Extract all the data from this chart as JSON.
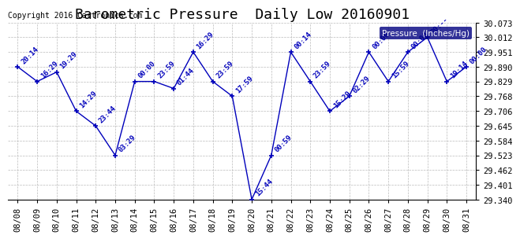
{
  "title": "Barometric Pressure  Daily Low 20160901",
  "copyright": "Copyright 2016 Cartronics.com",
  "legend_label": "Pressure  (Inches/Hg)",
  "dates": [
    "08/08",
    "08/09",
    "08/10",
    "08/11",
    "08/12",
    "08/13",
    "08/14",
    "08/15",
    "08/16",
    "08/17",
    "08/18",
    "08/19",
    "08/20",
    "08/21",
    "08/22",
    "08/23",
    "08/24",
    "08/25",
    "08/26",
    "08/27",
    "08/28",
    "08/29",
    "08/30",
    "08/31"
  ],
  "values": [
    29.89,
    29.829,
    29.868,
    29.706,
    29.645,
    29.523,
    29.829,
    29.829,
    29.8,
    29.951,
    29.829,
    29.768,
    29.34,
    29.523,
    29.951,
    29.829,
    29.706,
    29.768,
    29.951,
    29.829,
    29.951,
    30.012,
    29.829,
    29.89
  ],
  "times": [
    "20:14",
    "16:29",
    "19:29",
    "14:29",
    "23:44",
    "03:29",
    "00:00",
    "23:59",
    "01:44",
    "16:29",
    "23:59",
    "17:59",
    "15:44",
    "00:59",
    "00:14",
    "23:59",
    "15:29",
    "02:29",
    "00:00",
    "15:59",
    "00:00",
    "20:--",
    "19:14",
    "00:00"
  ],
  "ylim": [
    29.34,
    30.073
  ],
  "yticks": [
    29.34,
    29.401,
    29.462,
    29.523,
    29.584,
    29.645,
    29.706,
    29.768,
    29.829,
    29.89,
    29.951,
    30.012,
    30.073
  ],
  "line_color": "#0000bb",
  "marker_color": "#000088",
  "bg_color": "#ffffff",
  "grid_color": "#bbbbbb",
  "title_fontsize": 13,
  "tick_fontsize": 7.5,
  "annot_fontsize": 6.5
}
